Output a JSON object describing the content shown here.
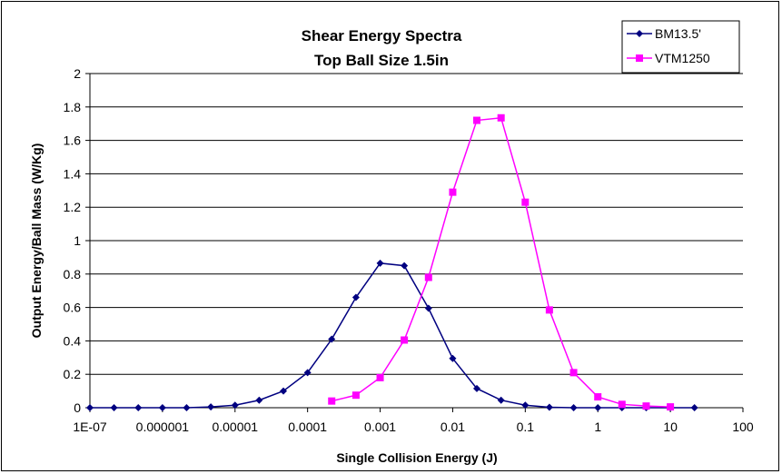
{
  "chart_data": {
    "type": "line",
    "title": [
      "Shear Energy Spectra",
      "Top Ball Size 1.5in"
    ],
    "xlabel": "Single Collision Energy (J)",
    "ylabel": "Output Energy/Ball Mass (W/Kg)",
    "x_scale": "log",
    "xlim": [
      1e-07,
      100
    ],
    "ylim": [
      0,
      2
    ],
    "x_ticks": [
      1e-07,
      1e-06,
      1e-05,
      0.0001,
      0.001,
      0.01,
      0.1,
      1,
      10,
      100
    ],
    "x_tick_labels": [
      "1E-07",
      "0.000001",
      "0.00001",
      "0.0001",
      "0.001",
      "0.01",
      "0.1",
      "1",
      "10",
      "100"
    ],
    "y_ticks": [
      0,
      0.2,
      0.4,
      0.6,
      0.8,
      1,
      1.2,
      1.4,
      1.6,
      1.8,
      2
    ],
    "y_tick_labels": [
      "0",
      "0.2",
      "0.4",
      "0.6",
      "0.8",
      "1",
      "1.2",
      "1.4",
      "1.6",
      "1.8",
      "2"
    ],
    "grid": "horizontal major gridlines",
    "legend_position": "top-right",
    "series": [
      {
        "name": "BM13.5'",
        "color": "#000080",
        "marker": "diamond",
        "x": [
          1e-07,
          2.15e-07,
          4.64e-07,
          1e-06,
          2.15e-06,
          4.64e-06,
          1e-05,
          2.15e-05,
          4.64e-05,
          0.0001,
          0.000215,
          0.000464,
          0.001,
          0.00215,
          0.00464,
          0.01,
          0.0215,
          0.0464,
          0.1,
          0.215,
          0.464,
          1,
          2.15,
          4.64,
          10,
          21.5
        ],
        "y": [
          0,
          0,
          0,
          0,
          0,
          0.005,
          0.015,
          0.045,
          0.1,
          0.21,
          0.41,
          0.66,
          0.865,
          0.85,
          0.595,
          0.295,
          0.115,
          0.045,
          0.015,
          0.003,
          0,
          0,
          0,
          0,
          0,
          0
        ]
      },
      {
        "name": "VTM1250",
        "color": "#ff00ff",
        "marker": "square",
        "x": [
          0.000215,
          0.000464,
          0.001,
          0.00215,
          0.00464,
          0.01,
          0.0215,
          0.0464,
          0.1,
          0.215,
          0.464,
          1,
          2.15,
          4.64,
          10
        ],
        "y": [
          0.04,
          0.075,
          0.18,
          0.405,
          0.78,
          1.29,
          1.72,
          1.735,
          1.23,
          0.585,
          0.21,
          0.065,
          0.02,
          0.01,
          0.005
        ]
      }
    ]
  }
}
